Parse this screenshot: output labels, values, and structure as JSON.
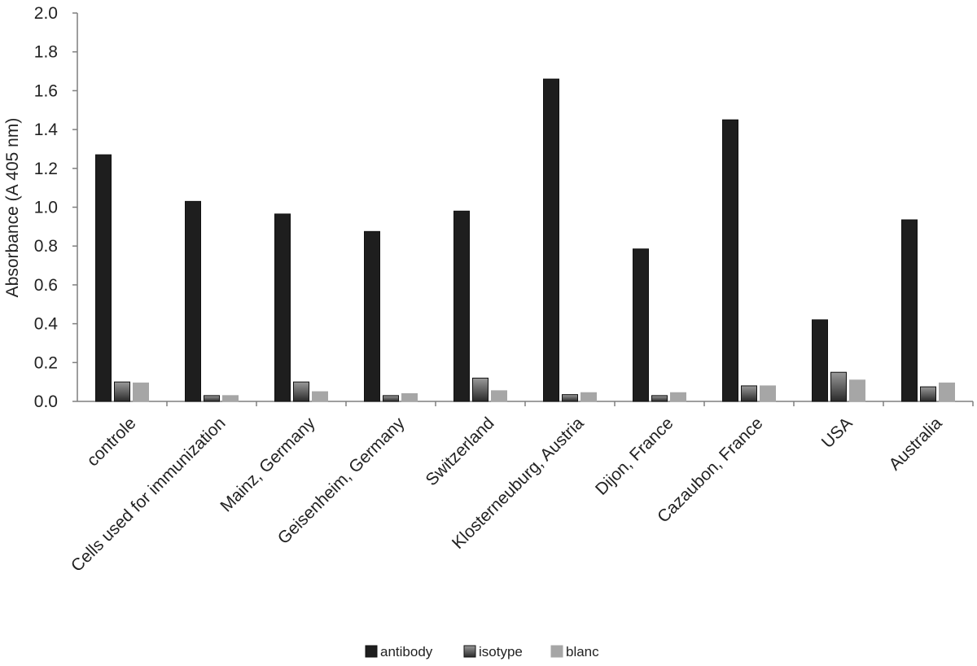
{
  "chart_data": {
    "type": "bar",
    "ylabel": "Absorbance (A 405 nm)",
    "xlabel": "",
    "ylim": [
      0,
      2.0
    ],
    "yticks": [
      "0.0",
      "0.2",
      "0.4",
      "0.6",
      "0.8",
      "1.0",
      "1.2",
      "1.4",
      "1.6",
      "1.8",
      "2.0"
    ],
    "grid": false,
    "legend_position": "bottom-center",
    "categories": [
      "controle",
      "Cells used for immunization",
      "Mainz, Germany",
      "Geisenheim, Germany",
      "Switzerland",
      "Klosterneuburg, Austria",
      "Dijon, France",
      "Cazaubon, France",
      "USA",
      "Australia"
    ],
    "series": [
      {
        "name": "antibody",
        "color": "#1e1e1e",
        "values": [
          1.27,
          1.03,
          0.965,
          0.875,
          0.98,
          1.66,
          0.785,
          1.45,
          0.42,
          0.935
        ]
      },
      {
        "name": "isotype",
        "color": "#555555",
        "values": [
          0.1,
          0.03,
          0.1,
          0.03,
          0.12,
          0.035,
          0.03,
          0.08,
          0.15,
          0.075
        ]
      },
      {
        "name": "blanc",
        "color": "#a6a6a6",
        "values": [
          0.095,
          0.03,
          0.05,
          0.04,
          0.055,
          0.045,
          0.045,
          0.08,
          0.11,
          0.095
        ]
      }
    ]
  }
}
